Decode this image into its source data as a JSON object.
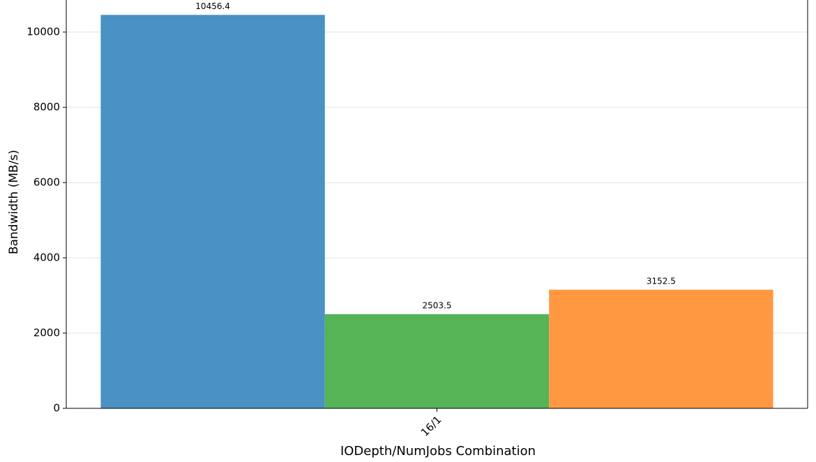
{
  "chart_data": {
    "type": "bar",
    "x_label": "IODepth/NumJobs Combination",
    "y_label": "Bandwidth (MB/s)",
    "categories": [
      "16/1"
    ],
    "series": [
      {
        "color": "#4a91c4",
        "values": [
          10456.4
        ]
      },
      {
        "color": "#56b356",
        "values": [
          2503.5
        ]
      },
      {
        "color": "#ff9841",
        "values": [
          3152.5
        ]
      }
    ],
    "ylim": [
      0,
      10852
    ],
    "yticks": [
      0,
      2000,
      4000,
      6000,
      8000,
      10000
    ],
    "grid": true
  }
}
